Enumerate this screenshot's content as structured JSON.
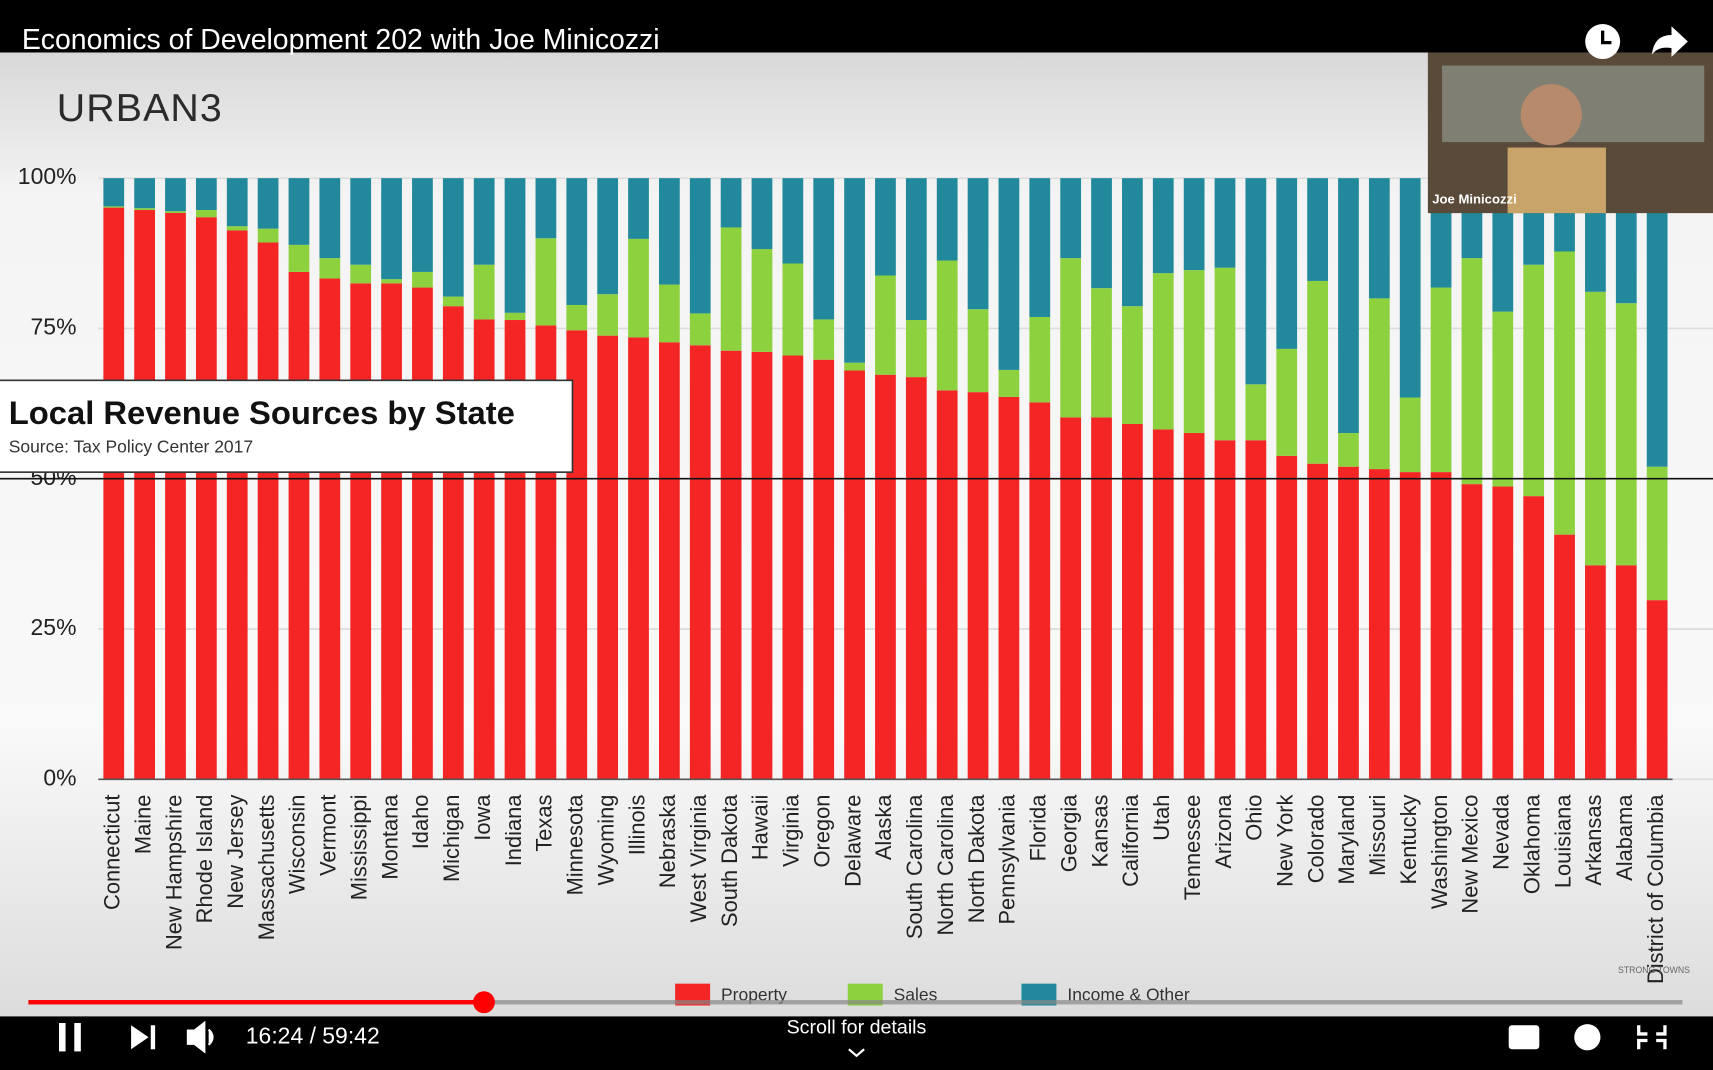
{
  "player": {
    "title": "Economics of Development 202 with Joe Minicozzi",
    "time": "16:24 / 59:42",
    "scroll_hint": "Scroll for details",
    "overlay_name": "Joe Minicozzi",
    "logo": "URBAN3",
    "watermark": "STRONG TOWNS"
  },
  "chart_data": {
    "type": "stacked-bar",
    "title": "Local Revenue Sources by State",
    "subtitle": "Source: Tax Policy Center 2017",
    "categories": [
      "Connecticut",
      "Maine",
      "New Hampshire",
      "Rhode Island",
      "New Jersey",
      "Massachusetts",
      "Wisconsin",
      "Vermont",
      "Mississippi",
      "Montana",
      "Idaho",
      "Michigan",
      "Iowa",
      "Indiana",
      "Texas",
      "Minnesota",
      "Wyoming",
      "Illinois",
      "Nebraska",
      "West Virginia",
      "South Dakota",
      "Hawaii",
      "Virginia",
      "Oregon",
      "Delaware",
      "Alaska",
      "South Carolina",
      "North Carolina",
      "North Dakota",
      "Pennsylvania",
      "Florida",
      "Georgia",
      "Kansas",
      "California",
      "Utah",
      "Tennessee",
      "Arizona",
      "Ohio",
      "New York",
      "Colorado",
      "Maryland",
      "Missouri",
      "Kentucky",
      "Washington",
      "New Mexico",
      "Nevada",
      "Oklahoma",
      "Louisiana",
      "Arkansas",
      "Alabama",
      "District of Columbia"
    ],
    "series": [
      {
        "name": "Property",
        "color": "#f42525",
        "values": [
          95.1,
          94.7,
          94.2,
          93.5,
          91.3,
          89.3,
          84.4,
          83.3,
          82.5,
          82.5,
          81.8,
          78.7,
          76.5,
          76.4,
          75.5,
          74.7,
          73.8,
          73.5,
          72.7,
          72.2,
          71.3,
          71.1,
          70.5,
          69.8,
          68.0,
          67.3,
          66.9,
          64.7,
          64.4,
          63.6,
          62.7,
          60.2,
          60.2,
          59.1,
          58.2,
          57.6,
          56.4,
          56.4,
          53.8,
          52.5,
          52.0,
          51.6,
          51.1,
          51.1,
          49.1,
          48.7,
          47.1,
          40.7,
          35.6,
          35.6,
          29.8
        ]
      },
      {
        "name": "Sales",
        "color": "#8ed13f",
        "values": [
          0.2,
          0.3,
          0.3,
          1.2,
          0.7,
          2.3,
          4.5,
          3.4,
          3.1,
          0.7,
          2.6,
          1.6,
          9.1,
          1.2,
          14.5,
          4.2,
          6.9,
          16.4,
          9.6,
          5.3,
          20.5,
          17.1,
          15.3,
          6.7,
          1.3,
          16.5,
          9.5,
          21.6,
          13.8,
          4.5,
          14.2,
          26.5,
          21.5,
          19.6,
          26.0,
          27.1,
          28.7,
          9.3,
          17.8,
          30.4,
          5.6,
          28.4,
          12.4,
          30.7,
          37.6,
          29.1,
          38.5,
          47.1,
          45.5,
          43.6,
          22.2
        ]
      },
      {
        "name": "Income & Other",
        "color": "#21899b",
        "values": [
          4.7,
          5.0,
          5.5,
          5.3,
          8.0,
          8.4,
          11.1,
          13.3,
          14.4,
          16.8,
          15.6,
          19.7,
          14.4,
          22.4,
          10.0,
          21.1,
          19.3,
          10.1,
          17.7,
          22.5,
          8.2,
          11.8,
          14.2,
          23.5,
          30.7,
          16.2,
          23.6,
          13.7,
          21.8,
          31.9,
          23.1,
          13.3,
          18.3,
          21.3,
          15.8,
          15.3,
          14.9,
          34.3,
          28.4,
          17.1,
          42.4,
          20.0,
          36.5,
          18.2,
          13.3,
          22.2,
          14.4,
          12.2,
          18.9,
          20.8,
          48.0
        ]
      }
    ],
    "ylim": [
      0,
      100
    ],
    "yticks": [
      {
        "value": 0,
        "label": "0%"
      },
      {
        "value": 25,
        "label": "25%"
      },
      {
        "value": 50,
        "label": "50%"
      },
      {
        "value": 75,
        "label": "75%"
      },
      {
        "value": 100,
        "label": "100%"
      }
    ],
    "grid": true,
    "legend": "bottom"
  }
}
